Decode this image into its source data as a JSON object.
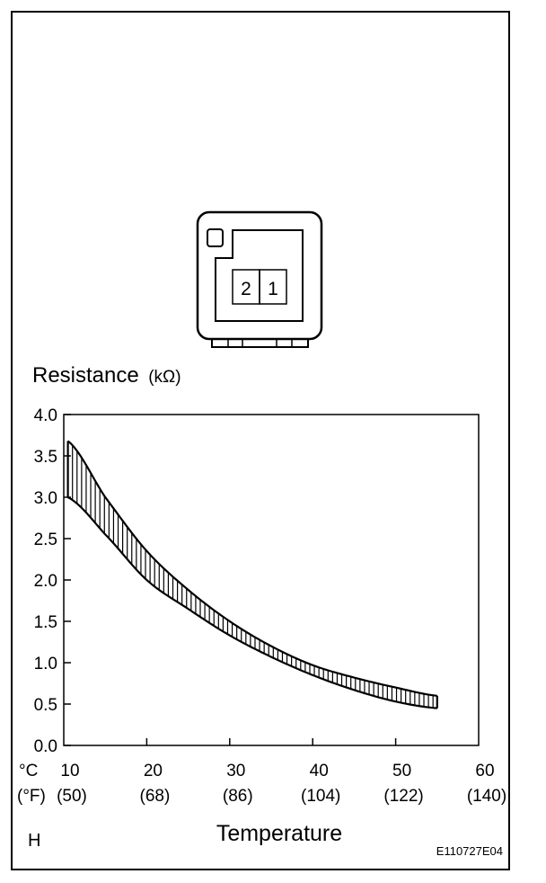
{
  "chart_data": {
    "type": "area",
    "ylabel_text": "Resistance",
    "ylabel_unit": "(kΩ)",
    "xlabel": "Temperature",
    "x_unit_c": "°C",
    "x_unit_f": "(°F)",
    "x_ticks_c": [
      "10",
      "20",
      "30",
      "40",
      "50",
      "60"
    ],
    "x_ticks_f": [
      "(50)",
      "(68)",
      "(86)",
      "(104)",
      "(122)",
      "(140)"
    ],
    "y_ticks": [
      "0.0",
      "0.5",
      "1.0",
      "1.5",
      "2.0",
      "2.5",
      "3.0",
      "3.5",
      "4.0"
    ],
    "xlim": [
      10,
      60
    ],
    "ylim": [
      0,
      4
    ],
    "grid": false,
    "band": {
      "x": [
        10.5,
        15,
        20,
        25,
        30,
        35,
        40,
        45,
        50,
        55
      ],
      "upper": [
        3.68,
        3.0,
        2.35,
        1.88,
        1.5,
        1.2,
        0.97,
        0.82,
        0.7,
        0.6
      ],
      "lower": [
        3.0,
        2.55,
        2.0,
        1.65,
        1.33,
        1.07,
        0.85,
        0.67,
        0.53,
        0.45
      ]
    }
  },
  "connector": {
    "pins": [
      "2",
      "1"
    ]
  },
  "corner_mark": "H",
  "figure_id": "E110727E04"
}
